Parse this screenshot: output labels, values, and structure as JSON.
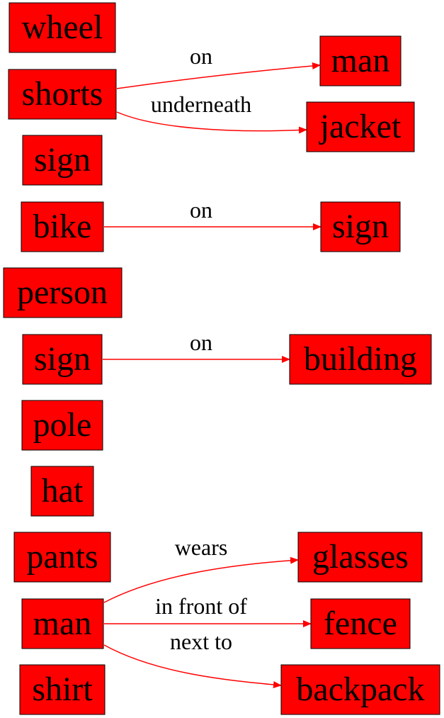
{
  "colors": {
    "node_fill": "#ff0000",
    "edge_stroke": "#ff0000",
    "text": "#000000"
  },
  "nodes": [
    {
      "id": "n_wheel",
      "label": "wheel"
    },
    {
      "id": "n_shorts",
      "label": "shorts"
    },
    {
      "id": "n_sign1",
      "label": "sign"
    },
    {
      "id": "n_bike",
      "label": "bike"
    },
    {
      "id": "n_person",
      "label": "person"
    },
    {
      "id": "n_sign2",
      "label": "sign"
    },
    {
      "id": "n_pole",
      "label": "pole"
    },
    {
      "id": "n_hat",
      "label": "hat"
    },
    {
      "id": "n_pants",
      "label": "pants"
    },
    {
      "id": "n_man_left",
      "label": "man"
    },
    {
      "id": "n_shirt",
      "label": "shirt"
    },
    {
      "id": "n_man_right",
      "label": "man"
    },
    {
      "id": "n_jacket",
      "label": "jacket"
    },
    {
      "id": "n_sign3",
      "label": "sign"
    },
    {
      "id": "n_building",
      "label": "building"
    },
    {
      "id": "n_glasses",
      "label": "glasses"
    },
    {
      "id": "n_fence",
      "label": "fence"
    },
    {
      "id": "n_backpack",
      "label": "backpack"
    }
  ],
  "edges": [
    {
      "id": "e1",
      "from": "n_shorts",
      "to": "n_man_right",
      "label": "on"
    },
    {
      "id": "e2",
      "from": "n_shorts",
      "to": "n_jacket",
      "label": "underneath"
    },
    {
      "id": "e3",
      "from": "n_bike",
      "to": "n_sign3",
      "label": "on"
    },
    {
      "id": "e4",
      "from": "n_sign2",
      "to": "n_building",
      "label": "on"
    },
    {
      "id": "e5",
      "from": "n_man_left",
      "to": "n_glasses",
      "label": "wears"
    },
    {
      "id": "e6",
      "from": "n_man_left",
      "to": "n_fence",
      "label": "in front of"
    },
    {
      "id": "e7",
      "from": "n_man_left",
      "to": "n_backpack",
      "label": "next to"
    }
  ]
}
